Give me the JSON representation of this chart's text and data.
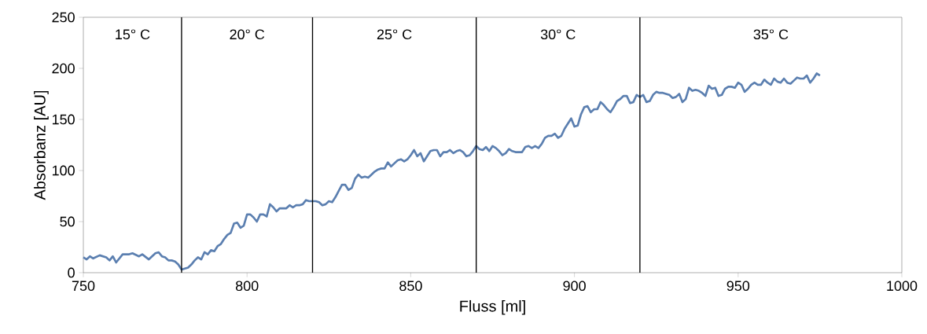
{
  "chart_data": {
    "type": "line",
    "xlabel": "Fluss [ml]",
    "ylabel": "Absorbanz [AU]",
    "xlim": [
      750,
      1000
    ],
    "ylim": [
      0,
      250
    ],
    "xticks": [
      750,
      800,
      850,
      900,
      950,
      1000
    ],
    "yticks": [
      0,
      50,
      100,
      150,
      200,
      250
    ],
    "grid": false,
    "marker": "none",
    "line_style": "solid",
    "ref_lines": [
      {
        "axis": "x",
        "value": 780,
        "color": "#000000"
      },
      {
        "axis": "x",
        "value": 820,
        "color": "#000000"
      },
      {
        "axis": "x",
        "value": 870,
        "color": "#000000"
      },
      {
        "axis": "x",
        "value": 920,
        "color": "#000000"
      }
    ],
    "annotations": [
      "15° C",
      "20° C",
      "25° C",
      "30° C",
      "35° C"
    ],
    "x": [
      750,
      751,
      752,
      753,
      755,
      757,
      758,
      759,
      760,
      762,
      764,
      765,
      767,
      768,
      770,
      772,
      773,
      774,
      775,
      776,
      777,
      778,
      779,
      780,
      781,
      782,
      783,
      784,
      785,
      786,
      787,
      788,
      789,
      790,
      791,
      792,
      793,
      794,
      795,
      796,
      797,
      798,
      799,
      800,
      801,
      802,
      803,
      804,
      805,
      806,
      807,
      808,
      809,
      810,
      811,
      812,
      813,
      814,
      815,
      816,
      817,
      818,
      819,
      820,
      821,
      822,
      823,
      824,
      825,
      826,
      827,
      828,
      829,
      830,
      831,
      832,
      833,
      834,
      835,
      836,
      837,
      838,
      839,
      840,
      841,
      842,
      843,
      844,
      845,
      846,
      847,
      848,
      849,
      850,
      851,
      852,
      853,
      854,
      855,
      856,
      857,
      858,
      859,
      860,
      861,
      862,
      863,
      864,
      865,
      866,
      867,
      868,
      869,
      870,
      871,
      872,
      873,
      874,
      875,
      876,
      877,
      878,
      879,
      880,
      881,
      882,
      883,
      884,
      885,
      886,
      887,
      888,
      889,
      890,
      891,
      892,
      893,
      894,
      895,
      896,
      897,
      898,
      899,
      900,
      901,
      902,
      903,
      904,
      905,
      906,
      907,
      908,
      909,
      910,
      911,
      912,
      913,
      914,
      915,
      916,
      917,
      918,
      919,
      920,
      921,
      922,
      923,
      924,
      925,
      926,
      927,
      928,
      929,
      930,
      931,
      932,
      933,
      934,
      935,
      936,
      937,
      938,
      939,
      940,
      941,
      942,
      943,
      944,
      945,
      946,
      947,
      948,
      949,
      950,
      951,
      952,
      953,
      954,
      955,
      956,
      957,
      958,
      959,
      960,
      961,
      962,
      963,
      964,
      965,
      966,
      967,
      968,
      969,
      970,
      971,
      972,
      973,
      974,
      975
    ],
    "series": [
      {
        "color": "#5b7fb0",
        "values": [
          15,
          13,
          16,
          14,
          17,
          15,
          12,
          16,
          10,
          18,
          18,
          19,
          16,
          18,
          13,
          19,
          20,
          16,
          15,
          12,
          12,
          11,
          8,
          3,
          4,
          5,
          8,
          12,
          15,
          13,
          20,
          18,
          22,
          21,
          26,
          28,
          33,
          37,
          39,
          48,
          49,
          44,
          46,
          57,
          57,
          54,
          50,
          57,
          57,
          55,
          67,
          64,
          60,
          63,
          63,
          63,
          66,
          64,
          66,
          66,
          67,
          71,
          70,
          70,
          70,
          69,
          66,
          67,
          70,
          69,
          74,
          80,
          86,
          86,
          81,
          83,
          92,
          96,
          93,
          94,
          93,
          96,
          99,
          101,
          102,
          102,
          108,
          104,
          107,
          110,
          111,
          109,
          111,
          115,
          120,
          114,
          117,
          109,
          114,
          119,
          120,
          120,
          114,
          118,
          118,
          120,
          117,
          119,
          120,
          118,
          114,
          115,
          119,
          124,
          121,
          120,
          123,
          119,
          124,
          122,
          119,
          115,
          117,
          121,
          119,
          118,
          118,
          118,
          123,
          124,
          122,
          124,
          122,
          126,
          132,
          134,
          134,
          136,
          132,
          134,
          141,
          146,
          151,
          143,
          144,
          155,
          162,
          163,
          157,
          160,
          160,
          167,
          164,
          160,
          157,
          162,
          168,
          170,
          173,
          173,
          166,
          167,
          174,
          172,
          174,
          167,
          168,
          174,
          177,
          176,
          176,
          175,
          174,
          171,
          172,
          175,
          167,
          170,
          181,
          178,
          179,
          178,
          176,
          173,
          183,
          180,
          181,
          173,
          174,
          180,
          182,
          182,
          181,
          186,
          184,
          177,
          180,
          184,
          186,
          184,
          184,
          189,
          186,
          184,
          190,
          187,
          186,
          190,
          186,
          185,
          188,
          191,
          190,
          190,
          193,
          186,
          190,
          195,
          193
        ]
      }
    ]
  }
}
